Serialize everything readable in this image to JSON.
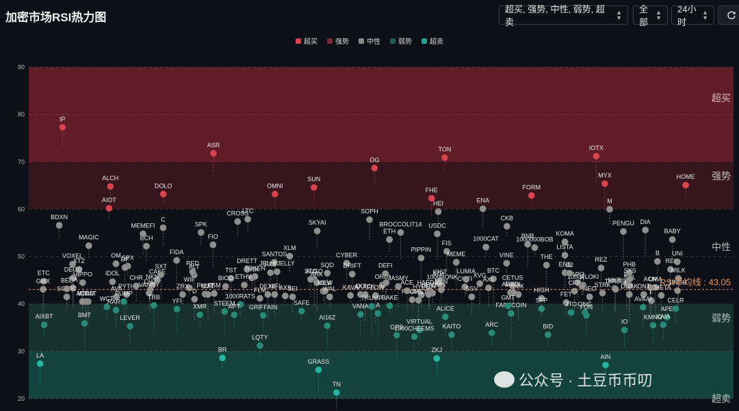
{
  "header": {
    "title": "加密市场RSI热力图"
  },
  "controls": {
    "filter": "超买, 强势, 中性, 弱势, 超卖",
    "scope": "全部",
    "period": "24小时",
    "refresh_icon": "refresh-icon"
  },
  "watermark": {
    "text": "公众号 · 土豆币币叨"
  },
  "colors": {
    "overbought": "#d9424f",
    "strong": "#7a2a35",
    "neutral": "#8a8a8a",
    "weak": "#1f5a4f",
    "oversold": "#1fa394",
    "average_line": "#e8955a"
  },
  "chart_data": {
    "type": "scatter",
    "ylim": [
      20,
      90
    ],
    "yticks": [
      20,
      30,
      40,
      50,
      60,
      70,
      80,
      90
    ],
    "legend": [
      "超买",
      "强势",
      "中性",
      "弱势",
      "超卖"
    ],
    "legend_position": "top",
    "zones": [
      {
        "name": "超买",
        "from": 80,
        "to": 90
      },
      {
        "name": "强势",
        "from": 60,
        "to": 70
      },
      {
        "name": "中性",
        "from": 40,
        "to": 60
      },
      {
        "name": "弱势",
        "from": 30,
        "to": 40
      },
      {
        "name": "超卖",
        "from": 20,
        "to": 30
      }
    ],
    "average": {
      "label": "RSI平均线 : 43.05",
      "value": 43.05
    },
    "points": [
      {
        "label": "IP",
        "rsi": 77.3,
        "zone": "overbought"
      },
      {
        "label": "TON",
        "rsi": 70.9,
        "zone": "overbought"
      },
      {
        "label": "ASR",
        "rsi": 71.8,
        "zone": "overbought"
      },
      {
        "label": "IOTX",
        "rsi": 71.2,
        "zone": "overbought"
      },
      {
        "label": "OG",
        "rsi": 68.7,
        "zone": "strong"
      },
      {
        "label": "ALCH",
        "rsi": 64.8,
        "zone": "strong"
      },
      {
        "label": "FORM",
        "rsi": 62.9,
        "zone": "strong"
      },
      {
        "label": "OMNI",
        "rsi": 63.2,
        "zone": "strong"
      },
      {
        "label": "HOME",
        "rsi": 65.1,
        "zone": "strong"
      },
      {
        "label": "FHE",
        "rsi": 62.3,
        "zone": "strong"
      },
      {
        "label": "DOLO",
        "rsi": 63.2,
        "zone": "strong"
      },
      {
        "label": "MYX",
        "rsi": 65.4,
        "zone": "strong"
      },
      {
        "label": "SUN",
        "rsi": 64.6,
        "zone": "strong"
      },
      {
        "label": "AIOT",
        "rsi": 60.2,
        "zone": "strong"
      },
      {
        "label": "ENA",
        "rsi": 60.1,
        "zone": "neutral"
      },
      {
        "label": "LTC",
        "rsi": 57.9,
        "zone": "neutral"
      },
      {
        "label": "PENGU",
        "rsi": 55.3,
        "zone": "neutral"
      },
      {
        "label": "ETH",
        "rsi": 53.6,
        "zone": "neutral"
      },
      {
        "label": "BCH",
        "rsi": 52.2,
        "zone": "neutral"
      },
      {
        "label": "BNB",
        "rsi": 52.6,
        "zone": "neutral"
      },
      {
        "label": "XLM",
        "rsi": 50.1,
        "zone": "neutral"
      },
      {
        "label": "UNI",
        "rsi": 48.9,
        "zone": "neutral"
      },
      {
        "label": "USDC",
        "rsi": 54.8,
        "zone": "neutral"
      },
      {
        "label": "SPK",
        "rsi": 55.1,
        "zone": "neutral"
      },
      {
        "label": "M",
        "rsi": 60.0,
        "zone": "neutral"
      },
      {
        "label": "SOPH",
        "rsi": 57.8,
        "zone": "neutral"
      },
      {
        "label": "MAGIC",
        "rsi": 52.3,
        "zone": "neutral"
      },
      {
        "label": "CKB",
        "rsi": 56.4,
        "zone": "neutral"
      },
      {
        "label": "CROSS",
        "rsi": 57.4,
        "zone": "neutral"
      },
      {
        "label": "BABY",
        "rsi": 53.6,
        "zone": "neutral"
      },
      {
        "label": "HEI",
        "rsi": 59.5,
        "zone": "neutral"
      },
      {
        "label": "C",
        "rsi": 56.1,
        "zone": "neutral"
      },
      {
        "label": "KOMA",
        "rsi": 53.1,
        "zone": "neutral"
      },
      {
        "label": "SKYAI",
        "rsi": 55.4,
        "zone": "neutral"
      },
      {
        "label": "BDXN",
        "rsi": 56.6,
        "zone": "neutral"
      },
      {
        "label": "1000CAT",
        "rsi": 52.0,
        "zone": "neutral"
      },
      {
        "label": "FIO",
        "rsi": 52.5,
        "zone": "neutral"
      },
      {
        "label": "DIA",
        "rsi": 55.6,
        "zone": "neutral"
      },
      {
        "label": "BROCCOLI714",
        "rsi": 55.1,
        "zone": "neutral"
      },
      {
        "label": "MEMEFI",
        "rsi": 54.8,
        "zone": "neutral"
      },
      {
        "label": "1000000BOB",
        "rsi": 51.9,
        "zone": "neutral"
      },
      {
        "label": "SANTOS",
        "rsi": 48.8,
        "zone": "neutral"
      },
      {
        "label": "REI",
        "rsi": 47.3,
        "zone": "neutral"
      },
      {
        "label": "FIS",
        "rsi": 51.1,
        "zone": "neutral"
      },
      {
        "label": "FIDA",
        "rsi": 49.2,
        "zone": "neutral"
      },
      {
        "label": "LISTA",
        "rsi": 50.3,
        "zone": "neutral"
      },
      {
        "label": "CYBER",
        "rsi": 48.6,
        "zone": "neutral"
      },
      {
        "label": "VOXEL",
        "rsi": 48.4,
        "zone": "neutral"
      },
      {
        "label": "BTC",
        "rsi": 45.3,
        "zone": "neutral"
      },
      {
        "label": "LINK",
        "rsi": 45.5,
        "zone": "neutral"
      },
      {
        "label": "SOL",
        "rsi": 43.9,
        "zone": "neutral"
      },
      {
        "label": "HYPE",
        "rsi": 41.9,
        "zone": "neutral"
      },
      {
        "label": "SPX",
        "rsi": 48.0,
        "zone": "neutral"
      },
      {
        "label": "ENS",
        "rsi": 46.6,
        "zone": "neutral"
      },
      {
        "label": "ALGO",
        "rsi": 45.2,
        "zone": "neutral"
      },
      {
        "label": "ETC",
        "rsi": 44.8,
        "zone": "neutral"
      },
      {
        "label": "1000BONK",
        "rsi": 43.9,
        "zone": "neutral"
      },
      {
        "label": "WIF",
        "rsi": 43.4,
        "zone": "neutral"
      },
      {
        "label": "MKR",
        "rsi": 43.3,
        "zone": "neutral"
      },
      {
        "label": "ORDI",
        "rsi": 44.0,
        "zone": "neutral"
      },
      {
        "label": "OM",
        "rsi": 48.5,
        "zone": "neutral"
      },
      {
        "label": "VINE",
        "rsi": 48.6,
        "zone": "neutral"
      },
      {
        "label": "DRETT",
        "rsi": 47.3,
        "zone": "neutral"
      },
      {
        "label": "B",
        "rsi": 49.0,
        "zone": "neutral"
      },
      {
        "label": "ATH",
        "rsi": 44.6,
        "zone": "neutral"
      },
      {
        "label": "CAKE",
        "rsi": 45.1,
        "zone": "neutral"
      },
      {
        "label": "1000FLOKI",
        "rsi": 44.0,
        "zone": "neutral"
      },
      {
        "label": "SOLV",
        "rsi": 42.7,
        "zone": "neutral"
      },
      {
        "label": "XTZ",
        "rsi": 47.3,
        "zone": "neutral"
      },
      {
        "label": "MEME",
        "rsi": 48.8,
        "zone": "neutral"
      },
      {
        "label": "TST",
        "rsi": 45.4,
        "zone": "neutral"
      },
      {
        "label": "W",
        "rsi": 44.5,
        "zone": "neutral"
      },
      {
        "label": "JASMY",
        "rsi": 43.7,
        "zone": "neutral"
      },
      {
        "label": "PYTH",
        "rsi": 42.0,
        "zone": "neutral"
      },
      {
        "label": "IMX",
        "rsi": 42.0,
        "zone": "neutral"
      },
      {
        "label": "FXS",
        "rsi": 46.6,
        "zone": "neutral"
      },
      {
        "label": "1INCH",
        "rsi": 42.8,
        "zone": "neutral"
      },
      {
        "label": "PIPPIN",
        "rsi": 49.7,
        "zone": "neutral"
      },
      {
        "label": "ALT",
        "rsi": 46.1,
        "zone": "neutral"
      },
      {
        "label": "REZ",
        "rsi": 47.6,
        "zone": "neutral"
      },
      {
        "label": "DRIFT",
        "rsi": 46.3,
        "zone": "neutral"
      },
      {
        "label": "HIPPO",
        "rsi": 44.5,
        "zone": "neutral"
      },
      {
        "label": "CETUS",
        "rsi": 43.8,
        "zone": "neutral"
      },
      {
        "label": "JELLYJELLY",
        "rsi": 46.8,
        "zone": "neutral"
      },
      {
        "label": "UMA",
        "rsi": 43.5,
        "zone": "neutral"
      },
      {
        "label": "HAEDAL",
        "rsi": 42.8,
        "zone": "neutral"
      },
      {
        "label": "SXT",
        "rsi": 46.2,
        "zone": "neutral"
      },
      {
        "label": "API3",
        "rsi": 44.5,
        "zone": "neutral"
      },
      {
        "label": "ARK",
        "rsi": 44.5,
        "zone": "neutral"
      },
      {
        "label": "DEGO",
        "rsi": 45.5,
        "zone": "neutral"
      },
      {
        "label": "COTI",
        "rsi": 43.6,
        "zone": "neutral"
      },
      {
        "label": "ETHW",
        "rsi": 44.0,
        "zone": "neutral"
      },
      {
        "label": "PHB",
        "rsi": 46.6,
        "zone": "neutral"
      },
      {
        "label": "T",
        "rsi": 44.5,
        "zone": "neutral"
      },
      {
        "label": "DF",
        "rsi": 47.7,
        "zone": "neutral"
      },
      {
        "label": "THE",
        "rsi": 48.2,
        "zone": "neutral"
      },
      {
        "label": "TOKEN",
        "rsi": 45.8,
        "zone": "neutral"
      },
      {
        "label": "MILK",
        "rsi": 45.4,
        "zone": "neutral"
      },
      {
        "label": "IOST",
        "rsi": 45.0,
        "zone": "neutral"
      },
      {
        "label": "RED",
        "rsi": 46.8,
        "zone": "neutral"
      },
      {
        "label": "B2",
        "rsi": 46.5,
        "zone": "neutral"
      },
      {
        "label": "SQD",
        "rsi": 46.5,
        "zone": "neutral"
      },
      {
        "label": "IDOL",
        "rsi": 44.7,
        "zone": "neutral"
      },
      {
        "label": "LUMIA",
        "rsi": 45.2,
        "zone": "neutral"
      },
      {
        "label": "BICO",
        "rsi": 43.7,
        "zone": "neutral"
      },
      {
        "label": "SYS",
        "rsi": 45.3,
        "zone": "neutral"
      },
      {
        "label": "DEFI",
        "rsi": 46.4,
        "zone": "neutral"
      },
      {
        "label": "NKN",
        "rsi": 44.0,
        "zone": "neutral"
      },
      {
        "label": "FET",
        "rsi": 40.3,
        "zone": "neutral"
      },
      {
        "label": "SEI",
        "rsi": 41.5,
        "zone": "neutral"
      },
      {
        "label": "TIA",
        "rsi": 43.4,
        "zone": "neutral"
      },
      {
        "label": "ATOM",
        "rsi": 42.3,
        "zone": "neutral"
      },
      {
        "label": "PNUT",
        "rsi": 42.1,
        "zone": "neutral"
      },
      {
        "label": "STRK",
        "rsi": 42.3,
        "zone": "neutral"
      },
      {
        "label": "KAVA",
        "rsi": 41.8,
        "zone": "neutral"
      },
      {
        "label": "COAT",
        "rsi": 40.5,
        "zone": "neutral"
      },
      {
        "label": "AERO",
        "rsi": 42.4,
        "zone": "neutral"
      },
      {
        "label": "AXS",
        "rsi": 41.7,
        "zone": "neutral"
      },
      {
        "label": "THETA",
        "rsi": 41.8,
        "zone": "neutral"
      },
      {
        "label": "PLUME",
        "rsi": 40.9,
        "zone": "neutral"
      },
      {
        "label": "CHZ",
        "rsi": 43.0,
        "zone": "neutral"
      },
      {
        "label": "NEO",
        "rsi": 41.5,
        "zone": "neutral"
      },
      {
        "label": "MEW",
        "rsi": 42.7,
        "zone": "neutral"
      },
      {
        "label": "SONIC",
        "rsi": 41.5,
        "zone": "neutral"
      },
      {
        "label": "AXL",
        "rsi": 43.4,
        "zone": "neutral"
      },
      {
        "label": "KSM",
        "rsi": 42.2,
        "zone": "neutral"
      },
      {
        "label": "ACH",
        "rsi": 43.5,
        "zone": "neutral"
      },
      {
        "label": "FLOW",
        "rsi": 41.8,
        "zone": "neutral"
      },
      {
        "label": "VANRY",
        "rsi": 42.3,
        "zone": "neutral"
      },
      {
        "label": "MERL",
        "rsi": 42.4,
        "zone": "neutral"
      },
      {
        "label": "DEXE",
        "rsi": 42.0,
        "zone": "neutral"
      },
      {
        "label": "GMX",
        "rsi": 43.1,
        "zone": "neutral"
      },
      {
        "label": "COW",
        "rsi": 42.0,
        "zone": "neutral"
      },
      {
        "label": "ZRX",
        "rsi": 42.0,
        "zone": "neutral"
      },
      {
        "label": "TANSSI",
        "rsi": 43.1,
        "zone": "neutral"
      },
      {
        "label": "AKT",
        "rsi": 42.0,
        "zone": "neutral"
      },
      {
        "label": "VTHO",
        "rsi": 40.5,
        "zone": "neutral"
      },
      {
        "label": "XVG",
        "rsi": 44.3,
        "zone": "neutral"
      },
      {
        "label": "HIFI",
        "rsi": 42.0,
        "zone": "neutral"
      },
      {
        "label": "ONT",
        "rsi": 42.0,
        "zone": "neutral"
      },
      {
        "label": "ACE",
        "rsi": 42.8,
        "zone": "neutral"
      },
      {
        "label": "CHR",
        "rsi": 43.8,
        "zone": "neutral"
      },
      {
        "label": "CFX",
        "rsi": 42.7,
        "zone": "neutral"
      },
      {
        "label": "STO",
        "rsi": 45.2,
        "zone": "neutral"
      },
      {
        "label": "BEL",
        "rsi": 43.2,
        "zone": "neutral"
      },
      {
        "label": "MLN",
        "rsi": 43.0,
        "zone": "neutral"
      },
      {
        "label": "OXT",
        "rsi": 42.0,
        "zone": "neutral"
      },
      {
        "label": "DUSK",
        "rsi": 42.0,
        "zone": "neutral"
      },
      {
        "label": "QUICK",
        "rsi": 42.0,
        "zone": "neutral"
      },
      {
        "label": "AVA",
        "rsi": 41.5,
        "zone": "neutral"
      },
      {
        "label": "HIGH",
        "rsi": 41.2,
        "zone": "neutral"
      },
      {
        "label": "FLM",
        "rsi": 41.2,
        "zone": "neutral"
      },
      {
        "label": "F",
        "rsi": 40.7,
        "zone": "neutral"
      },
      {
        "label": "GHST",
        "rsi": 40.8,
        "zone": "neutral"
      },
      {
        "label": "D",
        "rsi": 41.0,
        "zone": "neutral"
      },
      {
        "label": "H",
        "rsi": 43.8,
        "zone": "neutral"
      },
      {
        "label": "WAL",
        "rsi": 41.5,
        "zone": "neutral"
      },
      {
        "label": "ACT",
        "rsi": 40.5,
        "zone": "neutral"
      },
      {
        "label": "SSV",
        "rsi": 41.5,
        "zone": "neutral"
      },
      {
        "label": "1000RATS",
        "rsi": 39.9,
        "zone": "weak"
      },
      {
        "label": "AVAAI",
        "rsi": 39.3,
        "zone": "weak"
      },
      {
        "label": "BAKE",
        "rsi": 39.6,
        "zone": "weak"
      },
      {
        "label": "RARE",
        "rsi": 38.7,
        "zone": "weak"
      },
      {
        "label": "SFP",
        "rsi": 39.0,
        "zone": "weak"
      },
      {
        "label": "SAFE",
        "rsi": 38.5,
        "zone": "weak"
      },
      {
        "label": "CELR",
        "rsi": 39.0,
        "zone": "weak"
      },
      {
        "label": "ALICE",
        "rsi": 37.3,
        "zone": "weak"
      },
      {
        "label": "STEEM",
        "rsi": 38.4,
        "zone": "weak"
      },
      {
        "label": "ONG",
        "rsi": 38.2,
        "zone": "weak"
      },
      {
        "label": "TRUMP",
        "rsi": 39.5,
        "zone": "weak"
      },
      {
        "label": "PUMP",
        "rsi": 40.5,
        "zone": "weak"
      },
      {
        "label": "FARTCOIN",
        "rsi": 38.0,
        "zone": "weak"
      },
      {
        "label": "APT",
        "rsi": 37.7,
        "zone": "weak"
      },
      {
        "label": "APE",
        "rsi": 37.2,
        "zone": "weak"
      },
      {
        "label": "VIRTUAL",
        "rsi": 34.5,
        "zone": "weak"
      },
      {
        "label": "TRB",
        "rsi": 39.7,
        "zone": "weak"
      },
      {
        "label": "JTO",
        "rsi": 38.2,
        "zone": "weak"
      },
      {
        "label": "AI16Z",
        "rsi": 35.4,
        "zone": "weak"
      },
      {
        "label": "AIXBT",
        "rsi": 35.6,
        "zone": "weak"
      },
      {
        "label": "KAITO",
        "rsi": 33.5,
        "zone": "weak"
      },
      {
        "label": "XMR",
        "rsi": 37.7,
        "zone": "weak"
      },
      {
        "label": "IO",
        "rsi": 34.5,
        "zone": "weak"
      },
      {
        "label": "A",
        "rsi": 38.0,
        "zone": "weak"
      },
      {
        "label": "WCT",
        "rsi": 39.4,
        "zone": "weak"
      },
      {
        "label": "GMT",
        "rsi": 39.6,
        "zone": "weak"
      },
      {
        "label": "GRIFFAIN",
        "rsi": 37.6,
        "zone": "weak"
      },
      {
        "label": "KAIA",
        "rsi": 35.6,
        "zone": "weak"
      },
      {
        "label": "1000CHEEMS",
        "rsi": 33.1,
        "zone": "weak"
      },
      {
        "label": "YFI",
        "rsi": 38.9,
        "zone": "weak"
      },
      {
        "label": "FUN",
        "rsi": 37.6,
        "zone": "weak"
      },
      {
        "label": "VANA",
        "rsi": 37.8,
        "zone": "weak"
      },
      {
        "label": "BMT",
        "rsi": 35.9,
        "zone": "weak"
      },
      {
        "label": "ARC",
        "rsi": 33.9,
        "zone": "weak"
      },
      {
        "label": "LQTY",
        "rsi": 31.2,
        "zone": "weak"
      },
      {
        "label": "KMNO",
        "rsi": 35.5,
        "zone": "weak"
      },
      {
        "label": "GPS",
        "rsi": 33.4,
        "zone": "weak"
      },
      {
        "label": "LEVER",
        "rsi": 35.3,
        "zone": "weak"
      },
      {
        "label": "BID",
        "rsi": 33.5,
        "zone": "weak"
      },
      {
        "label": "GRASS",
        "rsi": 26.1,
        "zone": "oversold"
      },
      {
        "label": "LA",
        "rsi": 27.4,
        "zone": "oversold"
      },
      {
        "label": "ZKJ",
        "rsi": 28.5,
        "zone": "oversold"
      },
      {
        "label": "BR",
        "rsi": 28.6,
        "zone": "oversold"
      },
      {
        "label": "AIN",
        "rsi": 27.1,
        "zone": "oversold"
      },
      {
        "label": "TN",
        "rsi": 21.3,
        "zone": "oversold"
      }
    ]
  }
}
